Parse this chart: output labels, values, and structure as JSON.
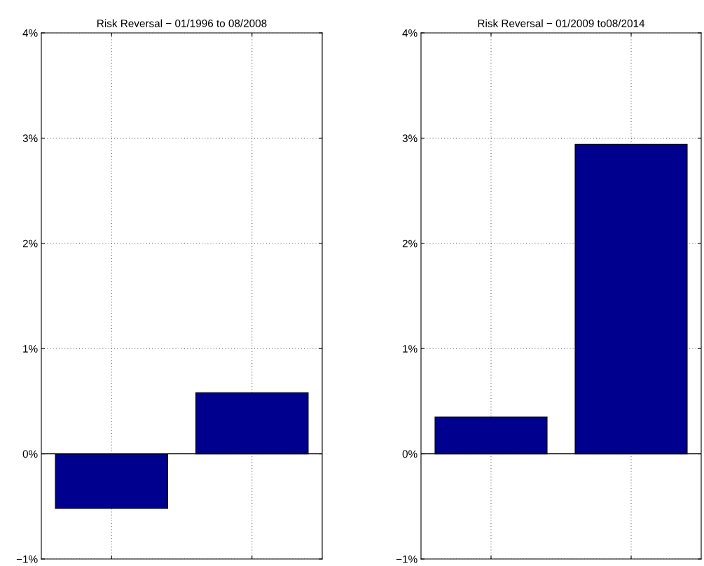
{
  "chart_data": [
    {
      "type": "bar",
      "title": "Risk Reversal − 01/1996 to 08/2008",
      "categories": [
        null,
        null
      ],
      "values": [
        -0.52,
        0.58
      ],
      "color": "#00008f",
      "ylim": [
        -1,
        4
      ],
      "yticks": [
        {
          "value": -1,
          "label": "−1%"
        },
        {
          "value": 0,
          "label": "0%"
        },
        {
          "value": 1,
          "label": "1%"
        },
        {
          "value": 2,
          "label": "2%"
        },
        {
          "value": 3,
          "label": "3%"
        },
        {
          "value": 4,
          "label": "4%"
        }
      ],
      "grid": true
    },
    {
      "type": "bar",
      "title": "Risk Reversal − 01/2009 to08/2014",
      "categories": [
        null,
        null
      ],
      "values": [
        0.35,
        2.94
      ],
      "color": "#00008f",
      "ylim": [
        -1,
        4
      ],
      "yticks": [
        {
          "value": -1,
          "label": "−1%"
        },
        {
          "value": 0,
          "label": "0%"
        },
        {
          "value": 1,
          "label": "1%"
        },
        {
          "value": 2,
          "label": "2%"
        },
        {
          "value": 3,
          "label": "3%"
        },
        {
          "value": 4,
          "label": "4%"
        }
      ],
      "grid": true
    }
  ]
}
